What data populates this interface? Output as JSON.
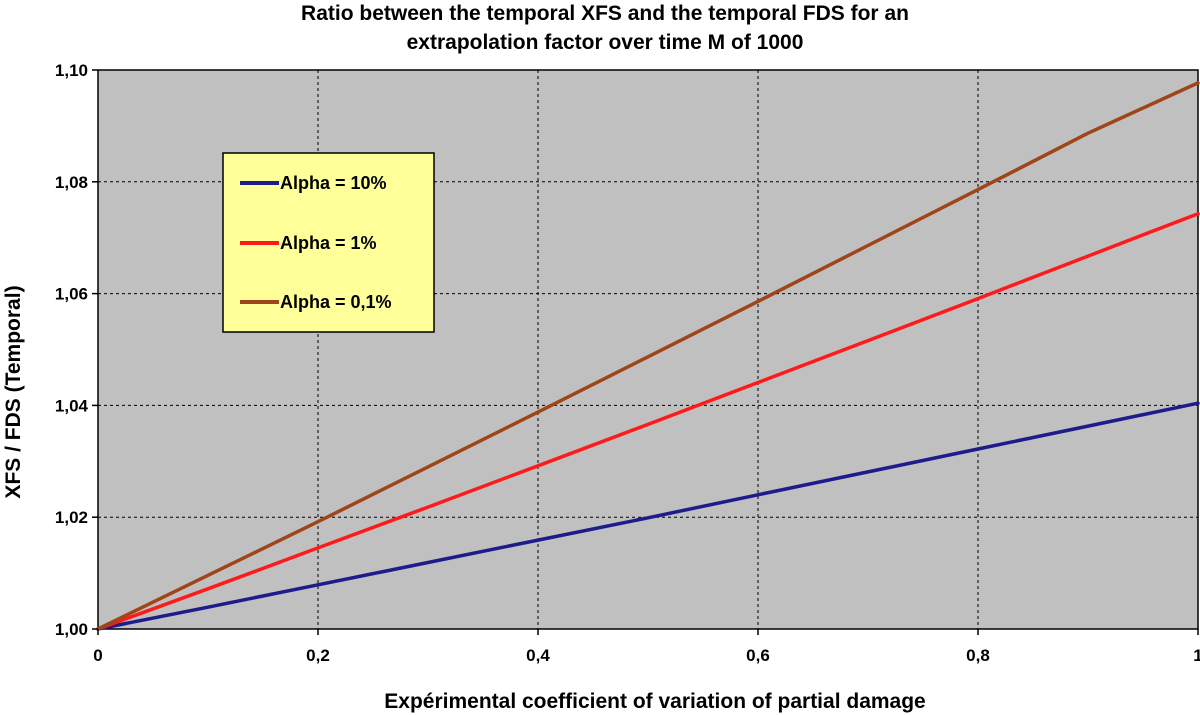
{
  "chart_data": {
    "type": "line",
    "title_lines": [
      "Ratio between the temporal XFS and the temporal FDS for an",
      "extrapolation factor over time M of 1000"
    ],
    "xlabel": "Expérimental coefficient of variation of partial damage",
    "ylabel": "XFS / FDS (Temporal)",
    "xlim": [
      0,
      1
    ],
    "ylim": [
      1.0,
      1.1
    ],
    "x_ticks": [
      0,
      0.2,
      0.4,
      0.6,
      0.8,
      1
    ],
    "x_tick_labels": [
      "0",
      "0,2",
      "0,4",
      "0,6",
      "0,8",
      "1"
    ],
    "y_ticks": [
      1.0,
      1.02,
      1.04,
      1.06,
      1.08,
      1.1
    ],
    "y_tick_labels": [
      "1,00",
      "1,02",
      "1,04",
      "1,06",
      "1,08",
      "1,10"
    ],
    "grid": true,
    "legend_position": "upper-left inside plot",
    "x": [
      0,
      0.1,
      0.2,
      0.3,
      0.4,
      0.5,
      0.6,
      0.7,
      0.8,
      0.9,
      1.0
    ],
    "series": [
      {
        "name": "Alpha = 10%",
        "color": "#1c1c8c",
        "values": [
          1.0,
          1.0039,
          1.0079,
          1.0119,
          1.0159,
          1.0199,
          1.024,
          1.0281,
          1.0322,
          1.0363,
          1.0404
        ]
      },
      {
        "name": "Alpha = 1%",
        "color": "#ff1a1a",
        "values": [
          1.0,
          1.0072,
          1.0145,
          1.0218,
          1.0292,
          1.0366,
          1.0441,
          1.0516,
          1.0591,
          1.0667,
          1.0743
        ]
      },
      {
        "name": "Alpha = 0,1%",
        "color": "#a0441a",
        "values": [
          1.0,
          1.0096,
          1.0192,
          1.029,
          1.0388,
          1.0487,
          1.0586,
          1.0686,
          1.0786,
          1.0887,
          1.0977
        ]
      }
    ],
    "colors": {
      "plot_background": "#c0c0c0",
      "legend_background": "#ffff99",
      "grid": "#000000"
    }
  }
}
